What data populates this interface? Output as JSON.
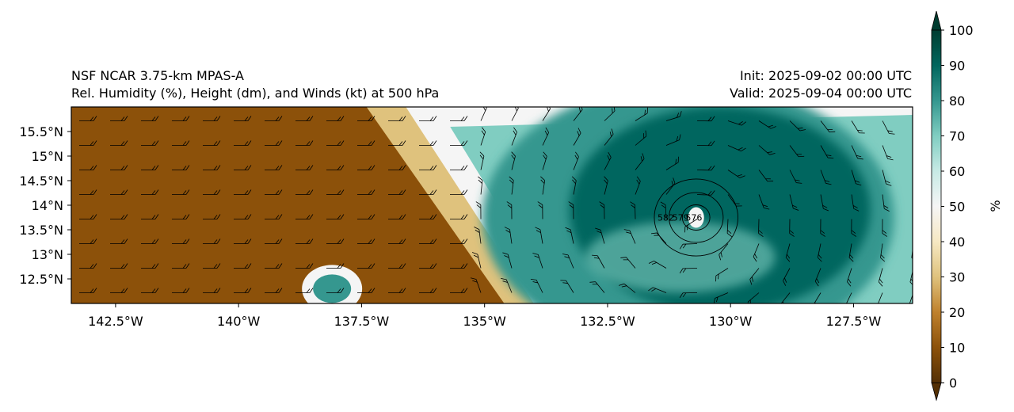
{
  "header": {
    "model": "NSF NCAR 3.75-km MPAS-A",
    "product": "Rel. Humidity (%), Height (dm), and Winds (kt) at 500 hPa",
    "init": "Init: 2025-09-02 00:00 UTC",
    "valid": "Valid: 2025-09-04 00:00 UTC"
  },
  "map": {
    "lon_range": [
      -143.4,
      -126.3
    ],
    "lat_range": [
      12.0,
      16.0
    ],
    "lon_ticks": [
      {
        "value": -142.5,
        "label": "142.5°W"
      },
      {
        "value": -140.0,
        "label": "140°W"
      },
      {
        "value": -137.5,
        "label": "137.5°W"
      },
      {
        "value": -135.0,
        "label": "135°W"
      },
      {
        "value": -132.5,
        "label": "132.5°W"
      },
      {
        "value": -130.0,
        "label": "130°W"
      },
      {
        "value": -127.5,
        "label": "127.5°W"
      }
    ],
    "lat_ticks": [
      {
        "value": 15.5,
        "label": "15.5°N"
      },
      {
        "value": 15.0,
        "label": "15°N"
      },
      {
        "value": 14.5,
        "label": "14.5°N"
      },
      {
        "value": 14.0,
        "label": "14°N"
      },
      {
        "value": 13.5,
        "label": "13.5°N"
      },
      {
        "value": 13.0,
        "label": "13°N"
      },
      {
        "value": 12.5,
        "label": "12.5°N"
      }
    ],
    "storm_center": {
      "lon": -130.7,
      "lat": 13.75
    },
    "height_contours": [
      {
        "label": "582",
        "radius_deg": 0.85
      },
      {
        "label": "579",
        "radius_deg": 0.55
      },
      {
        "label": "576",
        "radius_deg": 0.28
      }
    ]
  },
  "colorbar": {
    "unit": "%",
    "ticks": [
      "0",
      "10",
      "20",
      "30",
      "40",
      "50",
      "60",
      "70",
      "80",
      "90",
      "100"
    ],
    "colors": [
      "#543005",
      "#8c510a",
      "#bf812d",
      "#dfc27d",
      "#f6e8c3",
      "#f5f5f5",
      "#c7eae5",
      "#80cdc1",
      "#35978f",
      "#01665e",
      "#003c30"
    ]
  }
}
